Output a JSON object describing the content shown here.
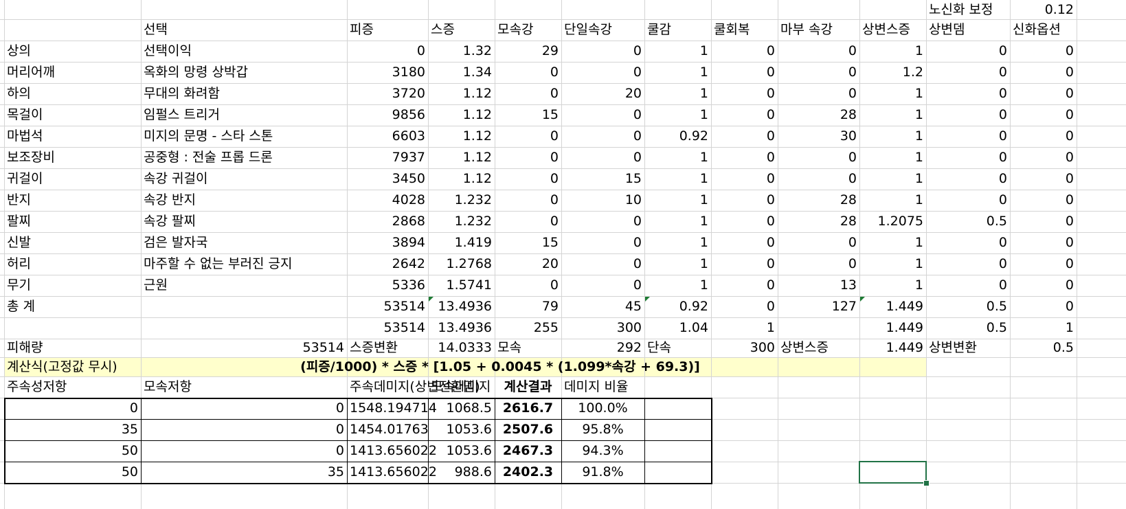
{
  "sheet": {
    "correction_label": "노신화 보정",
    "correction_value": "0.12",
    "headers": [
      "",
      "선택",
      "피증",
      "스증",
      "모속강",
      "단일속강",
      "쿨감",
      "쿨회복",
      "마부 속강",
      "상변스증",
      "상변뎀",
      "신화옵션"
    ],
    "rows": [
      [
        "상의",
        "선택이익",
        "0",
        "1.32",
        "29",
        "0",
        "1",
        "0",
        "0",
        "1",
        "0",
        "0"
      ],
      [
        "머리어깨",
        "옥화의 망령 상박갑",
        "3180",
        "1.34",
        "0",
        "0",
        "1",
        "0",
        "0",
        "1.2",
        "0",
        "0"
      ],
      [
        "하의",
        "무대의 화려함",
        "3720",
        "1.12",
        "0",
        "20",
        "1",
        "0",
        "0",
        "1",
        "0",
        "0"
      ],
      [
        "목걸이",
        "임펄스 트리거",
        "9856",
        "1.12",
        "15",
        "0",
        "1",
        "0",
        "28",
        "1",
        "0",
        "0"
      ],
      [
        "마법석",
        "미지의 문명 - 스타 스톤",
        "6603",
        "1.12",
        "0",
        "0",
        "0.92",
        "0",
        "30",
        "1",
        "0",
        "0"
      ],
      [
        "보조장비",
        "공중형 : 전술 프롭 드론",
        "7937",
        "1.12",
        "0",
        "0",
        "1",
        "0",
        "0",
        "1",
        "0",
        "0"
      ],
      [
        "귀걸이",
        "속강 귀걸이",
        "3450",
        "1.12",
        "0",
        "15",
        "1",
        "0",
        "0",
        "1",
        "0",
        "0"
      ],
      [
        "반지",
        "속강 반지",
        "4028",
        "1.232",
        "0",
        "10",
        "1",
        "0",
        "28",
        "1",
        "0",
        "0"
      ],
      [
        "팔찌",
        "속강 팔찌",
        "2868",
        "1.232",
        "0",
        "0",
        "1",
        "0",
        "28",
        "1.2075",
        "0.5",
        "0"
      ],
      [
        "신발",
        "검은 발자국",
        "3894",
        "1.419",
        "15",
        "0",
        "1",
        "0",
        "0",
        "1",
        "0",
        "0"
      ],
      [
        "허리",
        "마주할 수 없는 부러진 긍지",
        "2642",
        "1.2768",
        "20",
        "0",
        "1",
        "0",
        "0",
        "1",
        "0",
        "0"
      ],
      [
        "무기",
        "근원",
        "5336",
        "1.5741",
        "0",
        "0",
        "1",
        "0",
        "13",
        "1",
        "0",
        "0"
      ],
      [
        "총 계",
        "",
        "53514",
        "13.4936",
        "79",
        "45",
        "0.92",
        "0",
        "127",
        "1.449",
        "0.5",
        "0"
      ],
      [
        "",
        "",
        "53514",
        "13.4936",
        "255",
        "300",
        "1.04",
        "1",
        "",
        "1.449",
        "0.5",
        "1"
      ]
    ],
    "summary": [
      "피해량",
      "53514",
      "스증변환",
      "14.0333",
      "모속",
      "292",
      "단속",
      "300",
      "상변스증",
      "1.449",
      "상변변환",
      "0.5"
    ],
    "formula_label": "계산식(고정값 무시)",
    "formula": "(피증/1000) * 스증 * [1.05 + 0.0045 * (1.099*속강 + 69.3)]",
    "result_headers": [
      "주속성저항",
      "모속저항",
      "주속데미지(상변전환뎀)",
      "모속데미지",
      "계산결과",
      "데미지 비율"
    ],
    "results": [
      [
        "0",
        "0",
        "1548.194714",
        "1068.5",
        "2616.7",
        "100.0%"
      ],
      [
        "35",
        "0",
        "1454.01763",
        "1053.6",
        "2507.6",
        "95.8%"
      ],
      [
        "50",
        "0",
        "1413.656022",
        "1053.6",
        "2467.3",
        "94.3%"
      ],
      [
        "50",
        "35",
        "1413.656022",
        "988.6",
        "2402.3",
        "91.8%"
      ]
    ]
  }
}
